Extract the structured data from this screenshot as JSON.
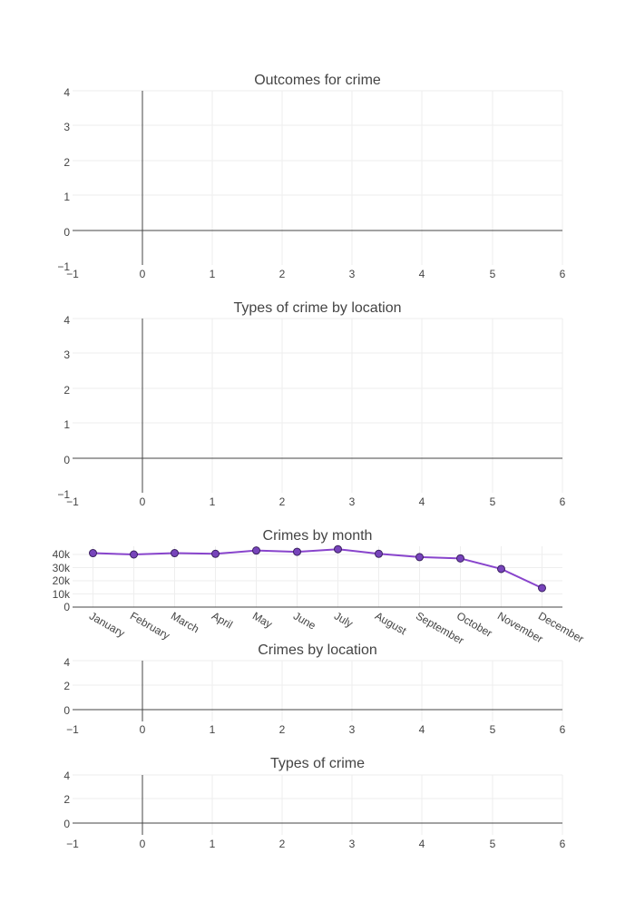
{
  "chart_data": [
    {
      "type": "scatter",
      "title": "Outcomes for crime",
      "xlim": [
        -1,
        6
      ],
      "ylim": [
        -1,
        4
      ],
      "x_ticks": [
        "−1",
        "0",
        "1",
        "2",
        "3",
        "4",
        "5",
        "6"
      ],
      "y_ticks": [
        "4",
        "3",
        "2",
        "1",
        "0",
        "−1"
      ],
      "grid": true,
      "series": []
    },
    {
      "type": "scatter",
      "title": "Types of crime by location",
      "xlim": [
        -1,
        6
      ],
      "ylim": [
        -1,
        4
      ],
      "x_ticks": [
        "−1",
        "0",
        "1",
        "2",
        "3",
        "4",
        "5",
        "6"
      ],
      "y_ticks": [
        "4",
        "3",
        "2",
        "1",
        "0",
        "−1"
      ],
      "grid": true,
      "series": []
    },
    {
      "type": "line",
      "title": "Crimes by month",
      "categories": [
        "January",
        "February",
        "March",
        "April",
        "May",
        "June",
        "July",
        "August",
        "September",
        "October",
        "November",
        "December"
      ],
      "y_ticks": [
        "40k",
        "30k",
        "20k",
        "10k",
        "0"
      ],
      "ylim": [
        0,
        44000
      ],
      "grid": true,
      "line_color": "#8844cc",
      "marker_color": "#7744bb",
      "series": [
        {
          "values": [
            41000,
            40000,
            41000,
            40500,
            43000,
            42000,
            44000,
            40500,
            38000,
            37000,
            29000,
            14500
          ]
        }
      ]
    },
    {
      "type": "scatter",
      "title": "Crimes by location",
      "xlim": [
        -1,
        6
      ],
      "ylim": [
        -1,
        4
      ],
      "x_ticks": [
        "−1",
        "0",
        "1",
        "2",
        "3",
        "4",
        "5",
        "6"
      ],
      "y_ticks": [
        "4",
        "2",
        "0"
      ],
      "grid": true,
      "series": []
    },
    {
      "type": "scatter",
      "title": "Types of crime",
      "xlim": [
        -1,
        6
      ],
      "ylim": [
        -1,
        4
      ],
      "x_ticks": [
        "−1",
        "0",
        "1",
        "2",
        "3",
        "4",
        "5",
        "6"
      ],
      "y_ticks": [
        "4",
        "2",
        "0"
      ],
      "grid": true,
      "series": []
    }
  ]
}
